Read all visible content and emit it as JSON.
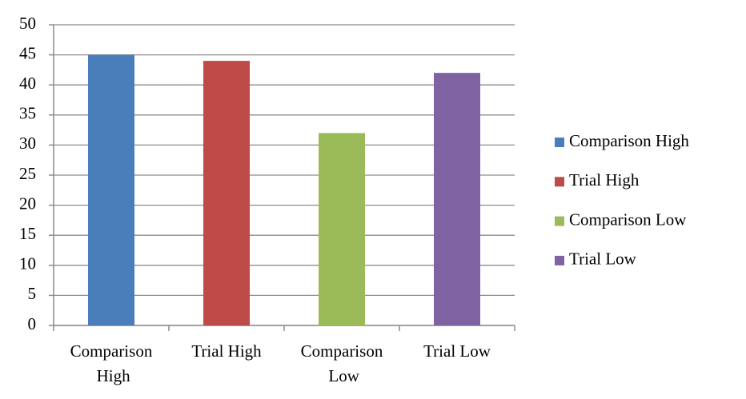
{
  "chart_data": {
    "type": "bar",
    "categories": [
      "Comparison High",
      "Trial High",
      "Comparison Low",
      "Trial Low"
    ],
    "values": [
      45,
      44,
      32,
      42
    ],
    "colors": [
      "#4a7ebb",
      "#be4b48",
      "#9bbb59",
      "#7f62a1"
    ],
    "ylim": [
      0,
      50
    ],
    "yticks": [
      0,
      5,
      10,
      15,
      20,
      25,
      30,
      35,
      40,
      45,
      50
    ],
    "grid": true,
    "legend": "right"
  }
}
